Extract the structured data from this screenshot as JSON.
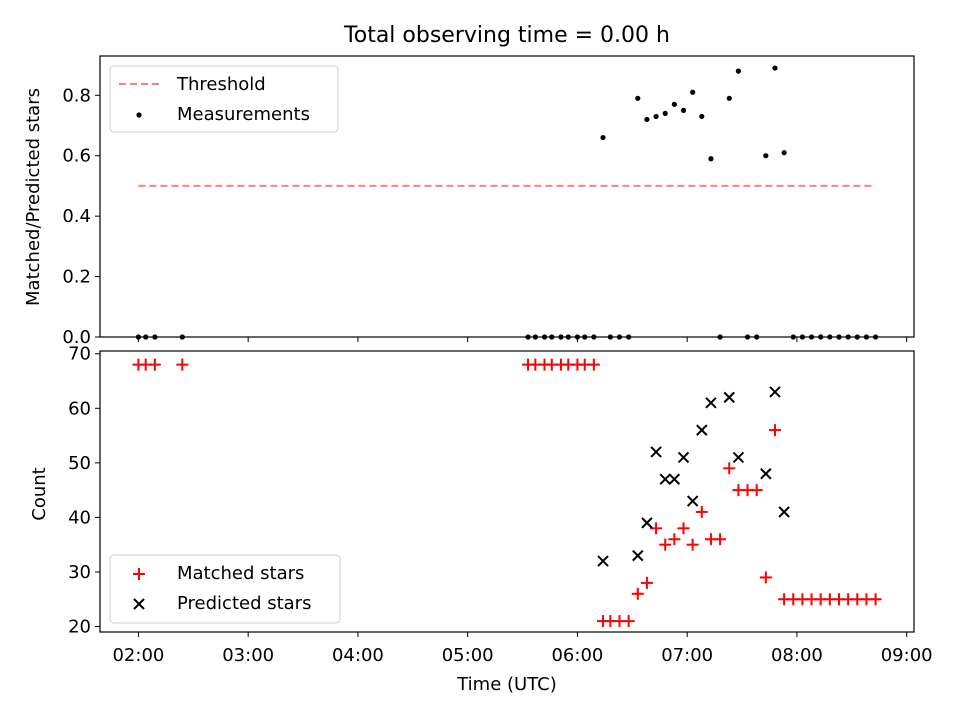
{
  "chart_data": [
    {
      "type": "scatter",
      "title": "Total observing time = 0.00 h",
      "xlabel": "",
      "ylabel": "Matched/Predicted stars",
      "xlim": [
        "01:39",
        "09:04"
      ],
      "ylim": [
        0,
        0.93
      ],
      "yticks": [
        "0.0",
        "0.2",
        "0.4",
        "0.6",
        "0.8"
      ],
      "legend_position": "upper-left",
      "threshold": {
        "name": "Threshold",
        "value": 0.5,
        "x_start": "02:00",
        "x_end": "08:43",
        "color": "#ff7f7f"
      },
      "series": [
        {
          "name": "Measurements",
          "color": "#000000",
          "points": [
            [
              "02:00",
              0
            ],
            [
              "02:04",
              0
            ],
            [
              "02:09",
              0
            ],
            [
              "02:24",
              0
            ],
            [
              "05:33",
              0
            ],
            [
              "05:37",
              0
            ],
            [
              "05:42",
              0
            ],
            [
              "05:46",
              0
            ],
            [
              "05:51",
              0
            ],
            [
              "05:55",
              0
            ],
            [
              "06:00",
              0
            ],
            [
              "06:04",
              0
            ],
            [
              "06:09",
              0
            ],
            [
              "06:14",
              0.66
            ],
            [
              "06:18",
              0
            ],
            [
              "06:23",
              0
            ],
            [
              "06:28",
              0
            ],
            [
              "06:33",
              0.79
            ],
            [
              "06:38",
              0.72
            ],
            [
              "06:43",
              0.73
            ],
            [
              "06:48",
              0.74
            ],
            [
              "06:53",
              0.77
            ],
            [
              "06:58",
              0.75
            ],
            [
              "07:03",
              0.81
            ],
            [
              "07:08",
              0.73
            ],
            [
              "07:13",
              0.59
            ],
            [
              "07:18",
              0
            ],
            [
              "07:23",
              0.79
            ],
            [
              "07:28",
              0.88
            ],
            [
              "07:33",
              0
            ],
            [
              "07:38",
              0
            ],
            [
              "07:43",
              0.6
            ],
            [
              "07:48",
              0.89
            ],
            [
              "07:53",
              0.61
            ],
            [
              "07:58",
              0
            ],
            [
              "08:03",
              0
            ],
            [
              "08:08",
              0
            ],
            [
              "08:13",
              0
            ],
            [
              "08:18",
              0
            ],
            [
              "08:23",
              0
            ],
            [
              "08:28",
              0
            ],
            [
              "08:33",
              0
            ],
            [
              "08:38",
              0
            ],
            [
              "08:43",
              0
            ]
          ]
        }
      ]
    },
    {
      "type": "scatter",
      "title": "",
      "xlabel": "Time (UTC)",
      "ylabel": "Count",
      "xlim": [
        "01:39",
        "09:04"
      ],
      "ylim": [
        19,
        70.5
      ],
      "yticks": [
        "20",
        "30",
        "40",
        "50",
        "60",
        "70"
      ],
      "xticks": [
        "02:00",
        "03:00",
        "04:00",
        "05:00",
        "06:00",
        "07:00",
        "08:00",
        "09:00"
      ],
      "legend_position": "lower-left",
      "series": [
        {
          "name": "Matched stars",
          "marker": "+",
          "color": "#ff0000",
          "points": [
            [
              "02:00",
              68
            ],
            [
              "02:04",
              68
            ],
            [
              "02:09",
              68
            ],
            [
              "02:24",
              68
            ],
            [
              "05:33",
              68
            ],
            [
              "05:37",
              68
            ],
            [
              "05:42",
              68
            ],
            [
              "05:46",
              68
            ],
            [
              "05:51",
              68
            ],
            [
              "05:55",
              68
            ],
            [
              "06:00",
              68
            ],
            [
              "06:04",
              68
            ],
            [
              "06:09",
              68
            ],
            [
              "06:14",
              21
            ],
            [
              "06:18",
              21
            ],
            [
              "06:23",
              21
            ],
            [
              "06:28",
              21
            ],
            [
              "06:33",
              26
            ],
            [
              "06:38",
              28
            ],
            [
              "06:43",
              38
            ],
            [
              "06:48",
              35
            ],
            [
              "06:53",
              36
            ],
            [
              "06:58",
              38
            ],
            [
              "07:03",
              35
            ],
            [
              "07:08",
              41
            ],
            [
              "07:13",
              36
            ],
            [
              "07:18",
              36
            ],
            [
              "07:23",
              49
            ],
            [
              "07:28",
              45
            ],
            [
              "07:33",
              45
            ],
            [
              "07:38",
              45
            ],
            [
              "07:43",
              29
            ],
            [
              "07:48",
              56
            ],
            [
              "07:53",
              25
            ],
            [
              "07:58",
              25
            ],
            [
              "08:03",
              25
            ],
            [
              "08:08",
              25
            ],
            [
              "08:13",
              25
            ],
            [
              "08:18",
              25
            ],
            [
              "08:23",
              25
            ],
            [
              "08:28",
              25
            ],
            [
              "08:33",
              25
            ],
            [
              "08:38",
              25
            ],
            [
              "08:43",
              25
            ]
          ]
        },
        {
          "name": "Predicted stars",
          "marker": "x",
          "color": "#000000",
          "points": [
            [
              "06:14",
              32
            ],
            [
              "06:33",
              33
            ],
            [
              "06:38",
              39
            ],
            [
              "06:43",
              52
            ],
            [
              "06:48",
              47
            ],
            [
              "06:53",
              47
            ],
            [
              "06:58",
              51
            ],
            [
              "07:03",
              43
            ],
            [
              "07:08",
              56
            ],
            [
              "07:13",
              61
            ],
            [
              "07:23",
              62
            ],
            [
              "07:28",
              51
            ],
            [
              "07:43",
              48
            ],
            [
              "07:48",
              63
            ],
            [
              "07:53",
              41
            ]
          ]
        }
      ]
    }
  ]
}
